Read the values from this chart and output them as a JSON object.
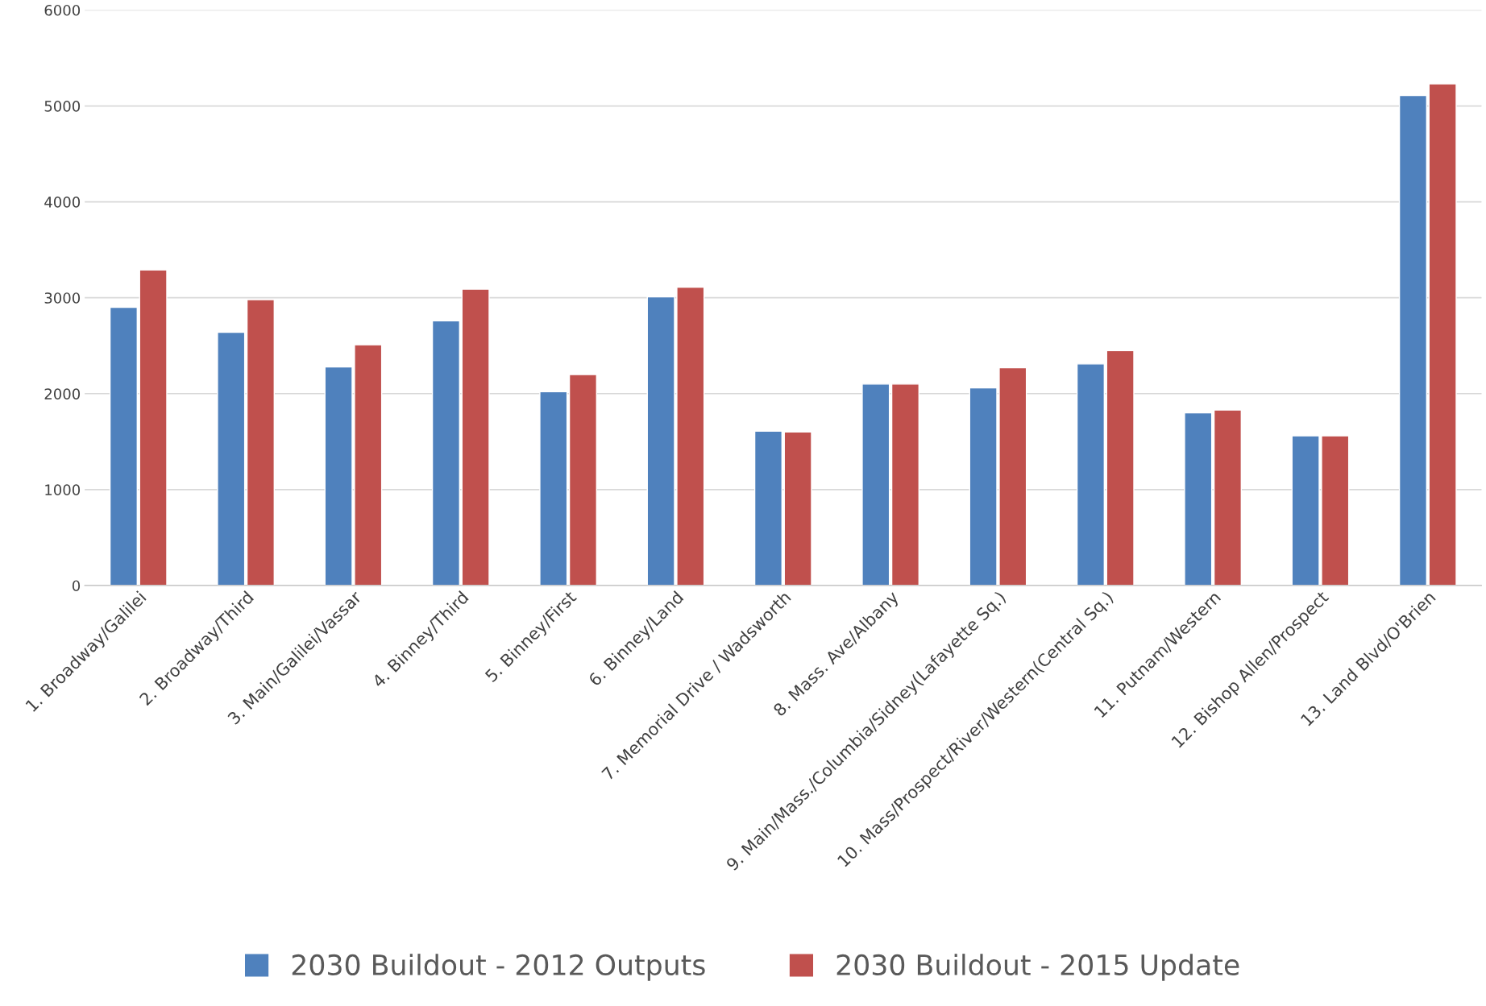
{
  "chart_data": {
    "type": "bar",
    "categories": [
      "1. Broadway/Galilei",
      "2. Broadway/Third",
      "3. Main/Galilei/Vassar",
      "4. Binney/Third",
      "5. Binney/First",
      "6. Binney/Land",
      "7. Memorial Drive / Wadsworth",
      "8. Mass. Ave/Albany",
      "9. Main/Mass./Columbia/Sidney(Lafayette Sq.)",
      "10. Mass/Prospect/River/Western(Central Sq.)",
      "11. Putnam/Western",
      "12. Bishop Allen/Prospect",
      "13. Land Blvd/O'Brien"
    ],
    "series": [
      {
        "name": "2030 Buildout - 2012 Outputs",
        "color": "#4f81bd",
        "values": [
          2900,
          2640,
          2280,
          2760,
          2020,
          3010,
          1610,
          2100,
          2060,
          2310,
          1800,
          1560,
          5110
        ]
      },
      {
        "name": "2030 Buildout - 2015 Update",
        "color": "#c0504d",
        "values": [
          3290,
          2980,
          2510,
          3090,
          2200,
          3110,
          1600,
          2100,
          2270,
          2450,
          1830,
          1560,
          5230
        ]
      }
    ],
    "ylim": [
      0,
      6000
    ],
    "yticks": [
      0,
      1000,
      2000,
      3000,
      4000,
      5000,
      6000
    ],
    "grid": "y",
    "legend": "bottom"
  }
}
